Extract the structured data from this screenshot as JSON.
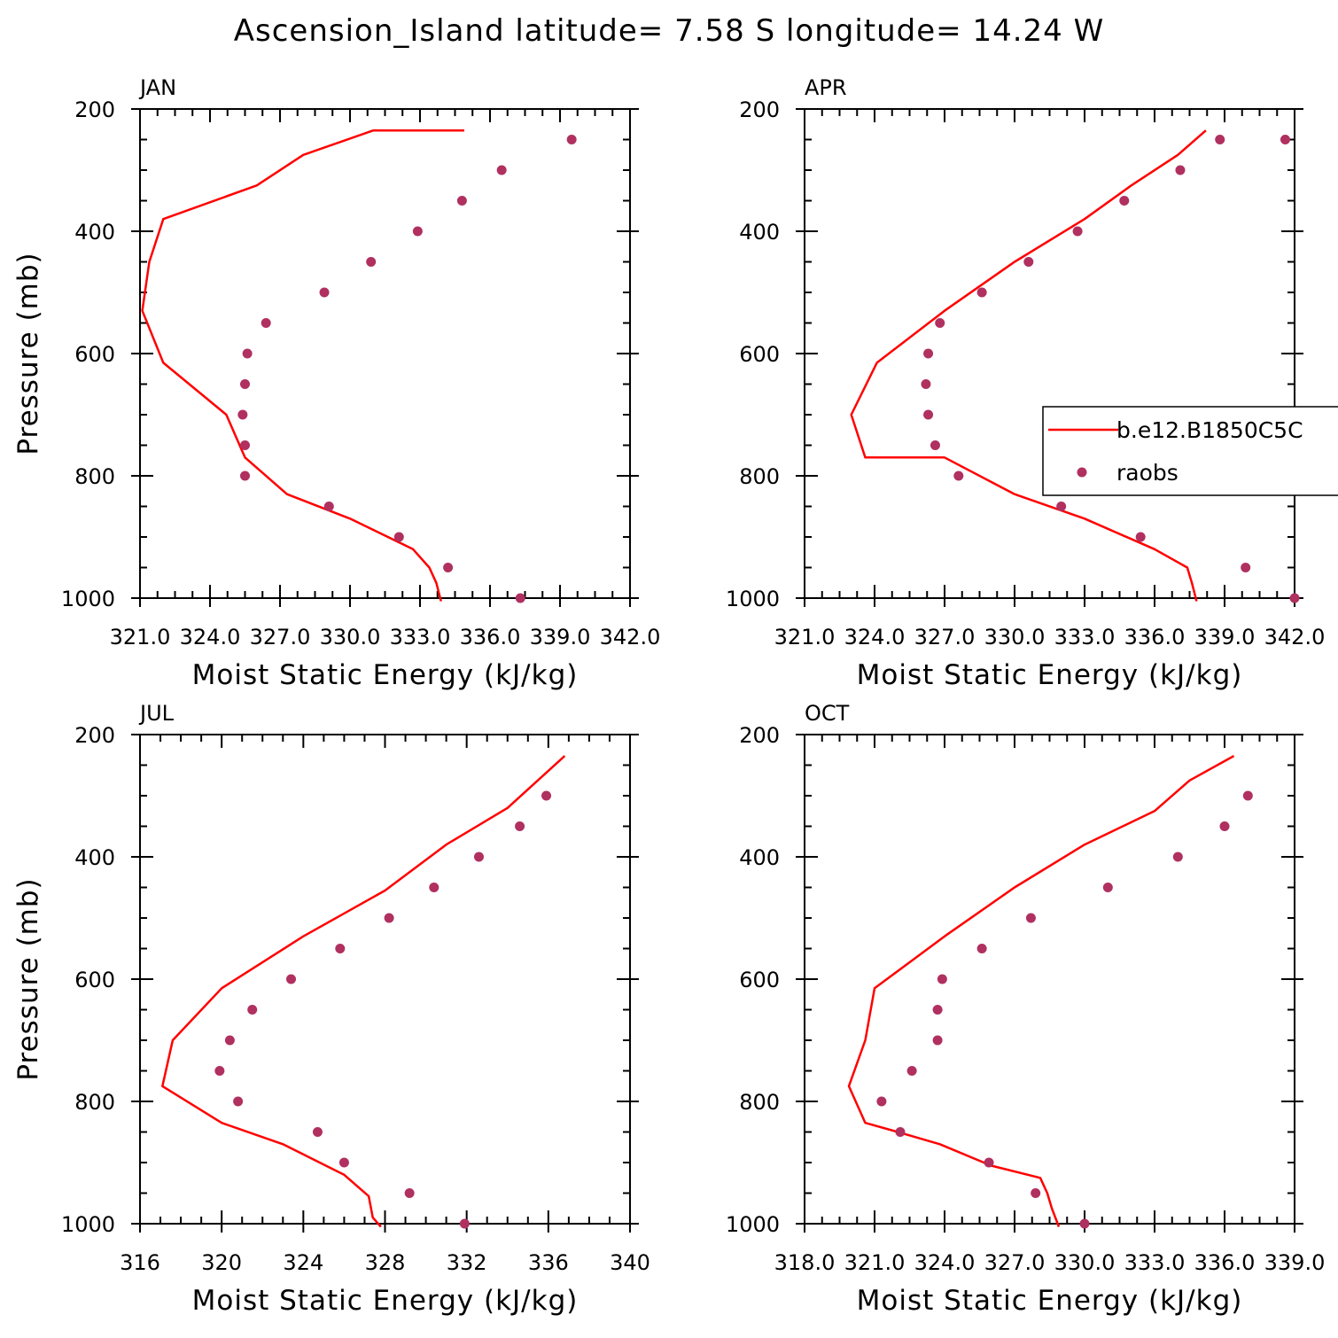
{
  "title": "Ascension_Island  latitude= 7.58 S longitude= 14.24 W",
  "colors": {
    "model": "#ff0000",
    "obs": "#b03060",
    "axis": "#000000"
  },
  "legend": {
    "panel": 1,
    "entries": [
      {
        "label": "b.e12.B1850C5C",
        "kind": "line"
      },
      {
        "label": "raobs",
        "kind": "marker"
      }
    ]
  },
  "chart_data": [
    {
      "type": "line",
      "label": "JAN",
      "xlabel": "Moist Static Energy (kJ/kg)",
      "ylabel": "Pressure (mb)",
      "xlim": [
        321.0,
        342.0
      ],
      "ylim": [
        1000,
        200
      ],
      "xticks": [
        321.0,
        324.0,
        327.0,
        330.0,
        333.0,
        336.0,
        339.0,
        342.0
      ],
      "xtick_labels": [
        "321.0",
        "324.0",
        "327.0",
        "330.0",
        "333.0",
        "336.0",
        "339.0",
        "342.0"
      ],
      "yticks": [
        200,
        400,
        600,
        800,
        1000
      ],
      "ytick_labels": [
        "200",
        "400",
        "600",
        "800",
        "1000"
      ],
      "series": [
        {
          "name": "b.e12.B1850C5C",
          "kind": "line",
          "x": [
            333.9,
            333.7,
            333.4,
            332.7,
            330.0,
            327.3,
            325.5,
            324.7,
            322.0,
            321.1,
            321.4,
            322.0,
            326.0,
            328.0,
            331.0,
            333.0,
            334.9
          ],
          "y": [
            1005,
            975,
            950,
            920,
            870,
            830,
            770,
            700,
            615,
            530,
            450,
            380,
            325,
            275,
            235,
            235,
            235
          ]
        },
        {
          "name": "raobs",
          "kind": "scatter",
          "x": [
            337.3,
            334.2,
            332.1,
            329.1,
            325.5,
            325.5,
            325.4,
            325.5,
            325.6,
            326.4,
            328.9,
            330.9,
            332.9,
            334.8,
            336.5,
            339.5
          ],
          "y": [
            1000,
            950,
            900,
            850,
            800,
            750,
            700,
            650,
            600,
            550,
            500,
            450,
            400,
            350,
            300,
            250
          ]
        }
      ]
    },
    {
      "type": "line",
      "label": "APR",
      "xlabel": "Moist Static Energy (kJ/kg)",
      "ylabel": "",
      "xlim": [
        321.0,
        342.0
      ],
      "ylim": [
        1000,
        200
      ],
      "xticks": [
        321.0,
        324.0,
        327.0,
        330.0,
        333.0,
        336.0,
        339.0,
        342.0
      ],
      "xtick_labels": [
        "321.0",
        "324.0",
        "327.0",
        "330.0",
        "333.0",
        "336.0",
        "339.0",
        "342.0"
      ],
      "yticks": [
        200,
        400,
        600,
        800,
        1000
      ],
      "ytick_labels": [
        "200",
        "400",
        "600",
        "800",
        "1000"
      ],
      "series": [
        {
          "name": "b.e12.B1850C5C",
          "kind": "line",
          "x": [
            337.8,
            337.6,
            337.4,
            336.0,
            333.0,
            330.0,
            327.0,
            323.6,
            323.0,
            324.1,
            327.0,
            330.0,
            333.0,
            335.0,
            337.0,
            338.2
          ],
          "y": [
            1005,
            975,
            950,
            920,
            870,
            830,
            770,
            770,
            700,
            615,
            530,
            450,
            380,
            325,
            275,
            235
          ]
        },
        {
          "name": "raobs",
          "kind": "scatter",
          "x": [
            342.0,
            339.9,
            335.4,
            332.0,
            327.6,
            326.6,
            326.3,
            326.2,
            326.3,
            326.8,
            328.6,
            330.6,
            332.7,
            334.7,
            337.1,
            338.8,
            341.6
          ],
          "y": [
            1000,
            950,
            900,
            850,
            800,
            750,
            700,
            650,
            600,
            550,
            500,
            450,
            400,
            350,
            300,
            250,
            250
          ]
        }
      ]
    },
    {
      "type": "line",
      "label": "JUL",
      "xlabel": "Moist Static Energy (kJ/kg)",
      "ylabel": "Pressure (mb)",
      "xlim": [
        316,
        340
      ],
      "ylim": [
        1000,
        200
      ],
      "xticks": [
        316,
        320,
        324,
        328,
        332,
        336,
        340
      ],
      "xtick_labels": [
        "316",
        "320",
        "324",
        "328",
        "332",
        "336",
        "340"
      ],
      "yticks": [
        200,
        400,
        600,
        800,
        1000
      ],
      "ytick_labels": [
        "200",
        "400",
        "600",
        "800",
        "1000"
      ],
      "series": [
        {
          "name": "b.e12.B1850C5C",
          "kind": "line",
          "x": [
            327.8,
            327.4,
            327.2,
            326.0,
            323.0,
            320.0,
            317.1,
            317.6,
            320.0,
            324.0,
            328.0,
            331.0,
            334.0,
            336.8
          ],
          "y": [
            1005,
            990,
            955,
            920,
            870,
            835,
            775,
            700,
            615,
            530,
            455,
            380,
            320,
            235
          ]
        },
        {
          "name": "raobs",
          "kind": "scatter",
          "x": [
            331.9,
            329.2,
            326.0,
            324.7,
            320.8,
            319.9,
            320.4,
            321.5,
            323.4,
            325.8,
            328.2,
            330.4,
            332.6,
            334.6,
            335.9
          ],
          "y": [
            1000,
            950,
            900,
            850,
            800,
            750,
            700,
            650,
            600,
            550,
            500,
            450,
            400,
            350,
            300
          ]
        }
      ]
    },
    {
      "type": "line",
      "label": "OCT",
      "xlabel": "Moist Static Energy (kJ/kg)",
      "ylabel": "",
      "xlim": [
        318.0,
        339.0
      ],
      "ylim": [
        1000,
        200
      ],
      "xticks": [
        318.0,
        321.0,
        324.0,
        327.0,
        330.0,
        333.0,
        336.0,
        339.0
      ],
      "xtick_labels": [
        "318.0",
        "321.0",
        "324.0",
        "327.0",
        "330.0",
        "333.0",
        "336.0",
        "339.0"
      ],
      "yticks": [
        200,
        400,
        600,
        800,
        1000
      ],
      "ytick_labels": [
        "200",
        "400",
        "600",
        "800",
        "1000"
      ],
      "series": [
        {
          "name": "b.e12.B1850C5C",
          "kind": "line",
          "x": [
            328.9,
            328.6,
            328.4,
            328.1,
            326.0,
            323.8,
            322.0,
            320.6,
            319.9,
            320.6,
            321.0,
            324.0,
            327.0,
            330.0,
            333.0,
            334.5,
            336.4
          ],
          "y": [
            1005,
            975,
            950,
            925,
            905,
            870,
            850,
            835,
            775,
            700,
            615,
            530,
            450,
            380,
            325,
            275,
            235
          ]
        },
        {
          "name": "raobs",
          "kind": "scatter",
          "x": [
            330.0,
            327.9,
            325.9,
            322.1,
            321.3,
            322.6,
            323.7,
            323.7,
            323.9,
            325.6,
            327.7,
            331.0,
            334.0,
            336.0,
            337.0
          ],
          "y": [
            1000,
            950,
            900,
            850,
            800,
            750,
            700,
            650,
            600,
            550,
            500,
            450,
            400,
            350,
            300
          ]
        }
      ]
    }
  ]
}
